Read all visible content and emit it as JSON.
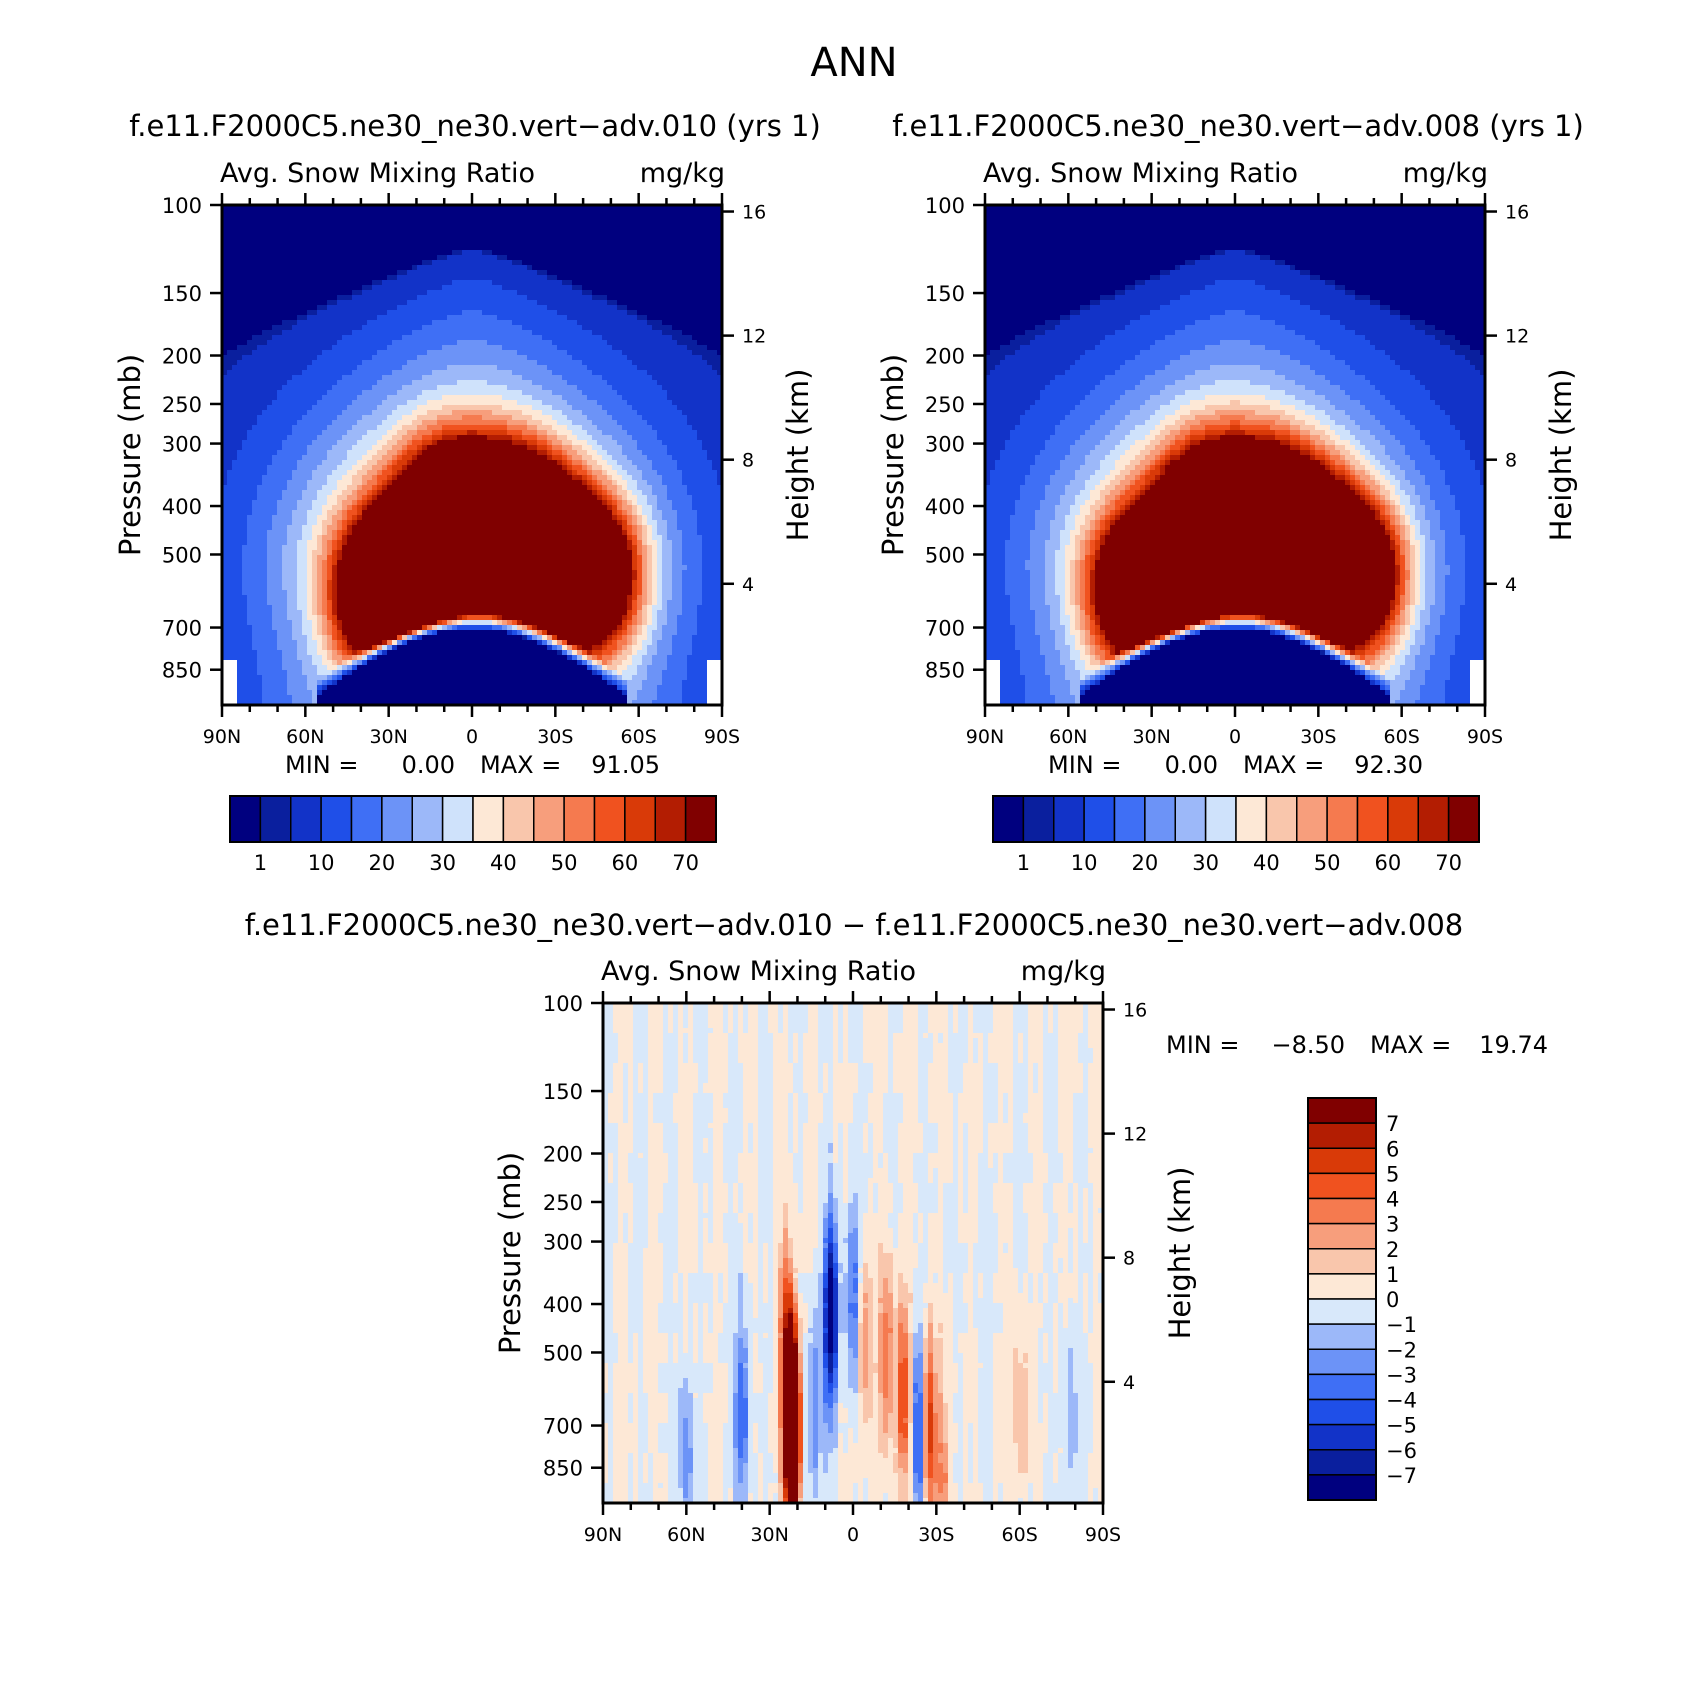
{
  "figure": {
    "season": "ANN"
  },
  "colors": {
    "panel_scale": [
      "#00007f",
      "#0a1f9e",
      "#1233c8",
      "#1f4fe8",
      "#3f6ff5",
      "#6c93f7",
      "#9cb8f9",
      "#cfe2fb",
      "#fde8d6",
      "#f9c6ac",
      "#f79e7c",
      "#f57a4f",
      "#f0521f",
      "#d93a08",
      "#b31d02",
      "#800000"
    ],
    "diff_scale": [
      "#00007f",
      "#0a1f9e",
      "#1233c8",
      "#1f4fe8",
      "#3f6ff5",
      "#6c93f7",
      "#9cb8f9",
      "#d8e8fa",
      "#fde8d6",
      "#f9c6ac",
      "#f79e7c",
      "#f57a4f",
      "#f0521f",
      "#d93a08",
      "#b31d02",
      "#800000"
    ]
  },
  "chart_data": [
    {
      "type": "heatmap",
      "case_title": "f.e11.F2000C5.ne30_ne30.vert−adv.010 (yrs 1)",
      "title": "Avg. Snow Mixing Ratio",
      "units": "mg/kg",
      "ylabel": "Pressure (mb)",
      "y2label": "Height (km)",
      "x_ticks": [
        "90N",
        "60N",
        "30N",
        "0",
        "30S",
        "60S",
        "90S"
      ],
      "x_values": [
        90,
        60,
        30,
        0,
        -30,
        -60,
        -90
      ],
      "y_ticks": [
        "100",
        "150",
        "200",
        "250",
        "300",
        "400",
        "500",
        "700",
        "850"
      ],
      "y_values": [
        100,
        150,
        200,
        250,
        300,
        400,
        500,
        700,
        850
      ],
      "y2_ticks": [
        "16",
        "12",
        "8",
        "4"
      ],
      "y2_values": [
        16,
        12,
        8,
        4
      ],
      "ylim": [
        100,
        1000
      ],
      "stats": {
        "min_label": "MIN =",
        "min": "0.00",
        "max_label": "MAX =",
        "max": "91.05"
      },
      "colorbar_labels": [
        "1",
        "10",
        "20",
        "30",
        "40",
        "50",
        "60",
        "70"
      ],
      "levels": [
        0.5,
        1,
        5,
        10,
        15,
        20,
        25,
        30,
        35,
        40,
        45,
        50,
        55,
        60,
        65,
        70
      ],
      "blobs": [
        {
          "lat": -12,
          "p": 430,
          "value": 78
        },
        {
          "lat": 8,
          "p": 420,
          "value": 82
        },
        {
          "lat": 33,
          "p": 610,
          "value": 80
        },
        {
          "lat": -42,
          "p": 560,
          "value": 91.05
        },
        {
          "lat": 20,
          "p": 560,
          "value": 70
        },
        {
          "lat": -25,
          "p": 480,
          "value": 72
        }
      ]
    },
    {
      "type": "heatmap",
      "case_title": "f.e11.F2000C5.ne30_ne30.vert−adv.008 (yrs 1)",
      "title": "Avg. Snow Mixing Ratio",
      "units": "mg/kg",
      "ylabel": "Pressure (mb)",
      "y2label": "Height (km)",
      "x_ticks": [
        "90N",
        "60N",
        "30N",
        "0",
        "30S",
        "60S",
        "90S"
      ],
      "x_values": [
        90,
        60,
        30,
        0,
        -30,
        -60,
        -90
      ],
      "y_ticks": [
        "100",
        "150",
        "200",
        "250",
        "300",
        "400",
        "500",
        "700",
        "850"
      ],
      "y_values": [
        100,
        150,
        200,
        250,
        300,
        400,
        500,
        700,
        850
      ],
      "y2_ticks": [
        "16",
        "12",
        "8",
        "4"
      ],
      "y2_values": [
        16,
        12,
        8,
        4
      ],
      "ylim": [
        100,
        1000
      ],
      "stats": {
        "min_label": "MIN =",
        "min": "0.00",
        "max_label": "MAX =",
        "max": "92.30"
      },
      "colorbar_labels": [
        "1",
        "10",
        "20",
        "30",
        "40",
        "50",
        "60",
        "70"
      ],
      "levels": [
        0.5,
        1,
        5,
        10,
        15,
        20,
        25,
        30,
        35,
        40,
        45,
        50,
        55,
        60,
        65,
        70
      ],
      "blobs": [
        {
          "lat": -12,
          "p": 430,
          "value": 80
        },
        {
          "lat": 8,
          "p": 420,
          "value": 84
        },
        {
          "lat": 35,
          "p": 600,
          "value": 80
        },
        {
          "lat": -42,
          "p": 560,
          "value": 92.3
        },
        {
          "lat": 20,
          "p": 560,
          "value": 70
        },
        {
          "lat": -25,
          "p": 480,
          "value": 72
        }
      ]
    },
    {
      "type": "heatmap",
      "case_title": "f.e11.F2000C5.ne30_ne30.vert−adv.010 − f.e11.F2000C5.ne30_ne30.vert−adv.008",
      "title": "Avg. Snow Mixing Ratio",
      "units": "mg/kg",
      "ylabel": "Pressure (mb)",
      "y2label": "Height (km)",
      "x_ticks": [
        "90N",
        "60N",
        "30N",
        "0",
        "30S",
        "60S",
        "90S"
      ],
      "x_values": [
        90,
        60,
        30,
        0,
        -30,
        -60,
        -90
      ],
      "y_ticks": [
        "100",
        "150",
        "200",
        "250",
        "300",
        "400",
        "500",
        "700",
        "850"
      ],
      "y_values": [
        100,
        150,
        200,
        250,
        300,
        400,
        500,
        700,
        850
      ],
      "y2_ticks": [
        "16",
        "12",
        "8",
        "4"
      ],
      "y2_values": [
        16,
        12,
        8,
        4
      ],
      "ylim": [
        100,
        1000
      ],
      "stats": {
        "min_label": "MIN =",
        "min": "−8.50",
        "max_label": "MAX =",
        "max": "19.74"
      },
      "colorbar_labels": [
        "7",
        "6",
        "5",
        "4",
        "3",
        "2",
        "1",
        "0",
        "−1",
        "−2",
        "−3",
        "−4",
        "−5",
        "−6",
        "−7"
      ],
      "levels": [
        -7,
        -6,
        -5,
        -4,
        -3,
        -2,
        -1,
        0,
        1,
        2,
        3,
        4,
        5,
        6,
        7
      ],
      "anomalies": [
        {
          "lat": 22,
          "p": 700,
          "value": 19.74
        },
        {
          "lat": 24,
          "p": 450,
          "value": 4
        },
        {
          "lat": 8,
          "p": 420,
          "value": -8.5
        },
        {
          "lat": 0,
          "p": 380,
          "value": -4
        },
        {
          "lat": -4,
          "p": 470,
          "value": 3
        },
        {
          "lat": -12,
          "p": 500,
          "value": 4
        },
        {
          "lat": -18,
          "p": 600,
          "value": 5
        },
        {
          "lat": -24,
          "p": 720,
          "value": -6
        },
        {
          "lat": -27,
          "p": 700,
          "value": 7
        },
        {
          "lat": 40,
          "p": 650,
          "value": -4
        },
        {
          "lat": 14,
          "p": 650,
          "value": -3
        },
        {
          "lat": 60,
          "p": 820,
          "value": -3
        },
        {
          "lat": -32,
          "p": 900,
          "value": 3
        },
        {
          "lat": -60,
          "p": 650,
          "value": 2
        },
        {
          "lat": -78,
          "p": 650,
          "value": -2
        }
      ]
    }
  ]
}
